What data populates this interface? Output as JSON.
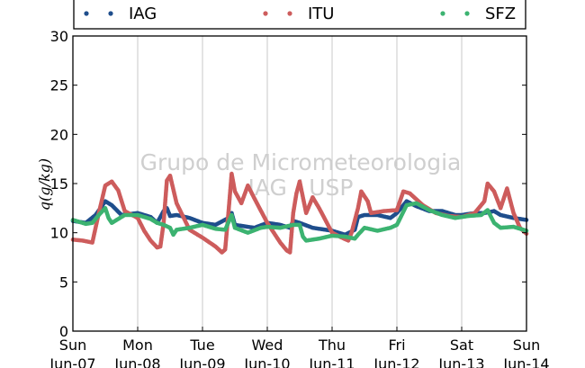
{
  "chart_data": {
    "type": "scatter",
    "ylabel": "q(g/kg)",
    "ylim": [
      0,
      30
    ],
    "yticks": [
      0,
      5,
      10,
      15,
      20,
      25,
      30
    ],
    "xlim": [
      0,
      7
    ],
    "xticks": [
      {
        "x": 0,
        "day": "Sun",
        "date": "Jun-07"
      },
      {
        "x": 1,
        "day": "Mon",
        "date": "Jun-08"
      },
      {
        "x": 2,
        "day": "Tue",
        "date": "Jun-09"
      },
      {
        "x": 3,
        "day": "Wed",
        "date": "Jun-10"
      },
      {
        "x": 4,
        "day": "Thu",
        "date": "Jun-11"
      },
      {
        "x": 5,
        "day": "Fri",
        "date": "Jun-12"
      },
      {
        "x": 6,
        "day": "Sat",
        "date": "Jun-13"
      },
      {
        "x": 7,
        "day": "Sun",
        "date": "Jun-14"
      }
    ],
    "grid": "vertical",
    "legend_position": "top",
    "watermark": [
      "Grupo de Micrometeorologia",
      "IAG / USP"
    ],
    "series": [
      {
        "name": "IAG",
        "color": "#1f4e8c",
        "points": [
          [
            0,
            11.2
          ],
          [
            0.2,
            11.0
          ],
          [
            0.35,
            11.8
          ],
          [
            0.5,
            13.2
          ],
          [
            0.6,
            12.8
          ],
          [
            0.75,
            11.8
          ],
          [
            1,
            12.0
          ],
          [
            1.2,
            11.6
          ],
          [
            1.3,
            11.0
          ],
          [
            1.4,
            12.2
          ],
          [
            1.45,
            12.5
          ],
          [
            1.5,
            11.7
          ],
          [
            1.6,
            11.8
          ],
          [
            1.8,
            11.5
          ],
          [
            2.0,
            11.0
          ],
          [
            2.2,
            10.8
          ],
          [
            2.4,
            11.5
          ],
          [
            2.45,
            12.0
          ],
          [
            2.5,
            10.8
          ],
          [
            2.8,
            10.5
          ],
          [
            3.0,
            11.0
          ],
          [
            3.2,
            10.8
          ],
          [
            3.35,
            10.5
          ],
          [
            3.4,
            11.2
          ],
          [
            3.5,
            11.0
          ],
          [
            3.7,
            10.5
          ],
          [
            4.0,
            10.2
          ],
          [
            4.2,
            9.8
          ],
          [
            4.35,
            10.3
          ],
          [
            4.4,
            11.6
          ],
          [
            4.5,
            11.8
          ],
          [
            4.7,
            11.8
          ],
          [
            4.9,
            11.5
          ],
          [
            5.0,
            12.0
          ],
          [
            5.15,
            13.2
          ],
          [
            5.3,
            12.7
          ],
          [
            5.5,
            12.2
          ],
          [
            5.7,
            12.2
          ],
          [
            5.9,
            11.8
          ],
          [
            6.0,
            11.8
          ],
          [
            6.2,
            12.0
          ],
          [
            6.35,
            12.0
          ],
          [
            6.5,
            12.2
          ],
          [
            6.6,
            11.8
          ],
          [
            6.8,
            11.5
          ],
          [
            7.0,
            11.3
          ]
        ]
      },
      {
        "name": "ITU",
        "color": "#cd5c5c",
        "points": [
          [
            0,
            9.3
          ],
          [
            0.15,
            9.2
          ],
          [
            0.3,
            9.0
          ],
          [
            0.4,
            12.0
          ],
          [
            0.5,
            14.8
          ],
          [
            0.6,
            15.2
          ],
          [
            0.7,
            14.3
          ],
          [
            0.8,
            12.2
          ],
          [
            1.0,
            11.5
          ],
          [
            1.1,
            10.2
          ],
          [
            1.2,
            9.2
          ],
          [
            1.3,
            8.5
          ],
          [
            1.35,
            8.6
          ],
          [
            1.4,
            11.0
          ],
          [
            1.45,
            15.3
          ],
          [
            1.5,
            15.8
          ],
          [
            1.6,
            13.0
          ],
          [
            1.8,
            10.3
          ],
          [
            2.0,
            9.5
          ],
          [
            2.2,
            8.6
          ],
          [
            2.3,
            8.0
          ],
          [
            2.35,
            8.3
          ],
          [
            2.4,
            12.0
          ],
          [
            2.45,
            16.0
          ],
          [
            2.5,
            14.2
          ],
          [
            2.6,
            13.0
          ],
          [
            2.7,
            14.8
          ],
          [
            2.8,
            13.5
          ],
          [
            3.0,
            11.0
          ],
          [
            3.2,
            9.0
          ],
          [
            3.3,
            8.2
          ],
          [
            3.35,
            8.0
          ],
          [
            3.4,
            12.0
          ],
          [
            3.45,
            14.0
          ],
          [
            3.5,
            15.2
          ],
          [
            3.6,
            12.0
          ],
          [
            3.7,
            13.6
          ],
          [
            3.8,
            12.5
          ],
          [
            4.0,
            10.0
          ],
          [
            4.15,
            9.5
          ],
          [
            4.25,
            9.2
          ],
          [
            4.3,
            10.0
          ],
          [
            4.4,
            12.5
          ],
          [
            4.45,
            14.2
          ],
          [
            4.55,
            13.2
          ],
          [
            4.6,
            12.0
          ],
          [
            4.8,
            12.2
          ],
          [
            5.0,
            12.3
          ],
          [
            5.1,
            14.2
          ],
          [
            5.2,
            14.0
          ],
          [
            5.4,
            12.8
          ],
          [
            5.6,
            12.0
          ],
          [
            5.8,
            11.7
          ],
          [
            6.0,
            11.6
          ],
          [
            6.2,
            12.0
          ],
          [
            6.35,
            13.2
          ],
          [
            6.4,
            15.0
          ],
          [
            6.5,
            14.2
          ],
          [
            6.6,
            12.5
          ],
          [
            6.7,
            14.5
          ],
          [
            6.8,
            12.0
          ],
          [
            6.9,
            10.5
          ],
          [
            7.0,
            9.9
          ]
        ]
      },
      {
        "name": "SFZ",
        "color": "#3cb371",
        "points": [
          [
            0,
            11.3
          ],
          [
            0.2,
            10.9
          ],
          [
            0.3,
            11.0
          ],
          [
            0.4,
            11.8
          ],
          [
            0.5,
            12.5
          ],
          [
            0.55,
            11.5
          ],
          [
            0.6,
            11.0
          ],
          [
            0.8,
            11.8
          ],
          [
            1.0,
            11.8
          ],
          [
            1.2,
            11.4
          ],
          [
            1.3,
            11.0
          ],
          [
            1.4,
            10.8
          ],
          [
            1.5,
            10.5
          ],
          [
            1.55,
            9.8
          ],
          [
            1.6,
            10.3
          ],
          [
            1.8,
            10.5
          ],
          [
            2.0,
            10.8
          ],
          [
            2.2,
            10.4
          ],
          [
            2.35,
            10.3
          ],
          [
            2.45,
            11.8
          ],
          [
            2.5,
            10.5
          ],
          [
            2.7,
            10.0
          ],
          [
            2.9,
            10.5
          ],
          [
            3.0,
            10.6
          ],
          [
            3.2,
            10.5
          ],
          [
            3.4,
            10.8
          ],
          [
            3.5,
            10.8
          ],
          [
            3.55,
            9.6
          ],
          [
            3.6,
            9.2
          ],
          [
            3.8,
            9.4
          ],
          [
            4.0,
            9.7
          ],
          [
            4.2,
            9.6
          ],
          [
            4.35,
            9.4
          ],
          [
            4.4,
            9.8
          ],
          [
            4.5,
            10.5
          ],
          [
            4.7,
            10.2
          ],
          [
            4.9,
            10.5
          ],
          [
            5.0,
            10.8
          ],
          [
            5.15,
            12.8
          ],
          [
            5.3,
            13.0
          ],
          [
            5.5,
            12.3
          ],
          [
            5.7,
            11.8
          ],
          [
            5.9,
            11.5
          ],
          [
            6.1,
            11.7
          ],
          [
            6.3,
            11.8
          ],
          [
            6.4,
            12.3
          ],
          [
            6.5,
            11.0
          ],
          [
            6.6,
            10.5
          ],
          [
            6.8,
            10.6
          ],
          [
            7.0,
            10.2
          ]
        ]
      }
    ]
  }
}
